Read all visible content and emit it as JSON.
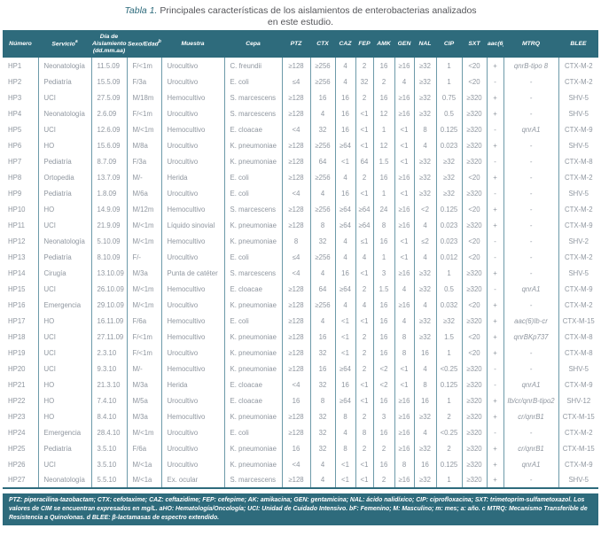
{
  "title": {
    "prefix": "Tabla 1.",
    "line1": "Principales características de los aislamientos de enterobacterias analizados",
    "line2": "en este estudio."
  },
  "colors": {
    "teal": "#2e6b7c",
    "body_text": "#9097a0",
    "header_text": "#ffffff",
    "separator": "#6d9aa9"
  },
  "table": {
    "columns": [
      {
        "key": "numero",
        "label": "Número"
      },
      {
        "key": "servicio",
        "label": "Servicio",
        "sup": "a"
      },
      {
        "key": "dia-aislamiento",
        "label": "Día de Aislamiento (dd.mm.aa)"
      },
      {
        "key": "sexo-edad",
        "label": "Sexo/Edad",
        "sup": "b"
      },
      {
        "key": "muestra",
        "label": "Muestra"
      },
      {
        "key": "cepa",
        "label": "Cepa"
      },
      {
        "key": "ptz",
        "label": "PTZ"
      },
      {
        "key": "ctx",
        "label": "CTX"
      },
      {
        "key": "caz",
        "label": "CAZ"
      },
      {
        "key": "fep",
        "label": "FEP"
      },
      {
        "key": "amk",
        "label": "AMK"
      },
      {
        "key": "gen",
        "label": "GEN"
      },
      {
        "key": "nal",
        "label": "NAL"
      },
      {
        "key": "cip",
        "label": "CIP"
      },
      {
        "key": "sxt",
        "label": "SXT"
      },
      {
        "key": "aac6ib",
        "label": "aac(6)Ib"
      },
      {
        "key": "mtrq",
        "label": "MTRQ"
      },
      {
        "key": "blee",
        "label": "BLEE"
      }
    ],
    "rows": [
      [
        "HP1",
        "Neonatología",
        "11.5.09",
        "F/<1m",
        "Urocultivo",
        "C. freundii",
        "≥128",
        "≥256",
        "4",
        "2",
        "16",
        "≥16",
        "≥32",
        "1",
        "<20",
        "+",
        "qnrB-tipo 8",
        "CTX-M-2"
      ],
      [
        "HP2",
        "Pediatría",
        "15.5.09",
        "F/3a",
        "Urocultivo",
        "E. coli",
        "≤4",
        "≥256",
        "4",
        "32",
        "2",
        "4",
        "≥32",
        "1",
        "<20",
        "-",
        "-",
        "CTX-M-2"
      ],
      [
        "HP3",
        "UCI",
        "27.5.09",
        "M/18m",
        "Hemocultivo",
        "S. marcescens",
        "≥128",
        "16",
        "16",
        "2",
        "16",
        "≥16",
        "≥32",
        "0.75",
        "≥320",
        "+",
        "-",
        "SHV-5"
      ],
      [
        "HP4",
        "Neonatología",
        "2.6.09",
        "F/<1m",
        "Urocultivo",
        "S. marcescens",
        "≥128",
        "4",
        "16",
        "<1",
        "12",
        "≥16",
        "≥32",
        "0.5",
        "≥320",
        "+",
        "-",
        "SHV-5"
      ],
      [
        "HP5",
        "UCI",
        "12.6.09",
        "M/<1m",
        "Hemocultivo",
        "E. cloacae",
        "<4",
        "32",
        "16",
        "<1",
        "1",
        "<1",
        "8",
        "0.125",
        "≥320",
        "-",
        "qnrA1",
        "CTX-M-9"
      ],
      [
        "HP6",
        "HO",
        "15.6.09",
        "M/8a",
        "Urocultivo",
        "K. pneumoniae",
        "≥128",
        "≥256",
        "≥64",
        "<1",
        "12",
        "<1",
        "4",
        "0.023",
        "≥320",
        "+",
        "-",
        "SHV-5"
      ],
      [
        "HP7",
        "Pediatría",
        "8.7.09",
        "F/3a",
        "Urocultivo",
        "K. pneumoniae",
        "≥128",
        "64",
        "<1",
        "64",
        "1.5",
        "<1",
        "≥32",
        "≥32",
        "≥320",
        "-",
        "-",
        "CTX-M-8"
      ],
      [
        "HP8",
        "Ortopedia",
        "13.7.09",
        "M/-",
        "Herida",
        "E. coli",
        "≥128",
        "≥256",
        "4",
        "2",
        "16",
        "≥16",
        "≥32",
        "≥32",
        "<20",
        "+",
        "-",
        "CTX-M-2"
      ],
      [
        "HP9",
        "Pediatría",
        "1.8.09",
        "M/6a",
        "Urocultivo",
        "E. coli",
        "<4",
        "4",
        "16",
        "<1",
        "1",
        "<1",
        "≥32",
        "≥32",
        "≥320",
        "-",
        "-",
        "SHV-5"
      ],
      [
        "HP10",
        "HO",
        "14.9.09",
        "M/12m",
        "Hemocultivo",
        "S. marcescens",
        "≥128",
        "≥256",
        "≥64",
        "≥64",
        "24",
        "≥16",
        "<2",
        "0.125",
        "<20",
        "+",
        "-",
        "CTX-M-2"
      ],
      [
        "HP11",
        "UCI",
        "21.9.09",
        "M/<1m",
        "Líquido sinovial",
        "K. pneumoniae",
        "≥128",
        "8",
        "≥64",
        "≥64",
        "8",
        "≥16",
        "4",
        "0.023",
        "≥320",
        "+",
        "-",
        "CTX-M-9"
      ],
      [
        "HP12",
        "Neonatología",
        "5.10.09",
        "M/<1m",
        "Hemocultivo",
        "K. pneumoniae",
        "8",
        "32",
        "4",
        "≤1",
        "16",
        "<1",
        "≤2",
        "0.023",
        "<20",
        "-",
        "-",
        "SHV-2"
      ],
      [
        "HP13",
        "Pediatría",
        "8.10.09",
        "F/-",
        "Urocultivo",
        "E. coli",
        "≤4",
        "≥256",
        "4",
        "4",
        "1",
        "<1",
        "4",
        "0.012",
        "<20",
        "-",
        "-",
        "CTX-M-2"
      ],
      [
        "HP14",
        "Cirugía",
        "13.10.09",
        "M/3a",
        "Punta de catéter",
        "S. marcescens",
        "<4",
        "4",
        "16",
        "<1",
        "3",
        "≥16",
        "≥32",
        "1",
        "≥320",
        "+",
        "-",
        "SHV-5"
      ],
      [
        "HP15",
        "UCI",
        "26.10.09",
        "M/<1m",
        "Hemocultivo",
        "E. cloacae",
        "≥128",
        "64",
        "≥64",
        "2",
        "1.5",
        "4",
        "≥32",
        "0.5",
        "≥320",
        "-",
        "qnrA1",
        "CTX-M-9"
      ],
      [
        "HP16",
        "Emergencia",
        "29.10.09",
        "M/<1m",
        "Urocultivo",
        "K. pneumoniae",
        "≥128",
        "≥256",
        "4",
        "4",
        "16",
        "≥16",
        "4",
        "0.032",
        "<20",
        "+",
        "-",
        "CTX-M-2"
      ],
      [
        "HP17",
        "HO",
        "16.11.09",
        "F/6a",
        "Hemocultivo",
        "E. coli",
        "≥128",
        "4",
        "<1",
        "<1",
        "16",
        "4",
        "≥32",
        "≥32",
        "≥320",
        "+",
        "aac(6)Ib-cr",
        "CTX-M-15"
      ],
      [
        "HP18",
        "UCI",
        "27.11.09",
        "F/<1m",
        "Hemocultivo",
        "K. pneumoniae",
        "≥128",
        "16",
        "<1",
        "2",
        "16",
        "8",
        "≥32",
        "1.5",
        "<20",
        "+",
        "qnrBKp737",
        "CTX-M-8"
      ],
      [
        "HP19",
        "UCI",
        "2.3.10",
        "F/<1m",
        "Urocultivo",
        "K. pneumoniae",
        "≥128",
        "32",
        "<1",
        "2",
        "16",
        "8",
        "16",
        "1",
        "<20",
        "+",
        "-",
        "CTX-M-8"
      ],
      [
        "HP20",
        "UCI",
        "9.3.10",
        "M/-",
        "Hemocultivo",
        "K. pneumoniae",
        "≥128",
        "16",
        "≥64",
        "2",
        "<2",
        "<1",
        "4",
        "<0.25",
        "≥320",
        "-",
        "-",
        "SHV-5"
      ],
      [
        "HP21",
        "HO",
        "21.3.10",
        "M/3a",
        "Herida",
        "E. cloacae",
        "<4",
        "32",
        "16",
        "<1",
        "<2",
        "<1",
        "8",
        "0.125",
        "≥320",
        "-",
        "qnrA1",
        "CTX-M-9"
      ],
      [
        "HP22",
        "HO",
        "7.4.10",
        "M/5a",
        "Urocultivo",
        "E. cloacae",
        "16",
        "8",
        "≥64",
        "<1",
        "16",
        "≥16",
        "16",
        "1",
        "≥320",
        "+",
        "Ib/cr/qnrB-tipo2",
        "SHV-12"
      ],
      [
        "HP23",
        "HO",
        "8.4.10",
        "M/3a",
        "Hemocultivo",
        "K. pneumoniae",
        "≥128",
        "32",
        "8",
        "2",
        "3",
        "≥16",
        "≥32",
        "2",
        "≥320",
        "+",
        "cr/qnrB1",
        "CTX-M-15"
      ],
      [
        "HP24",
        "Emergencia",
        "28.4.10",
        "M/<1m",
        "Urocultivo",
        "E. coli",
        "≥128",
        "32",
        "4",
        "8",
        "16",
        "≥16",
        "4",
        "<0.25",
        "≥320",
        "-",
        "-",
        "CTX-M-2"
      ],
      [
        "HP25",
        "Pediatría",
        "3.5.10",
        "F/6a",
        "Urocultivo",
        "K. pneumoniae",
        "16",
        "32",
        "8",
        "2",
        "2",
        "≥16",
        "≥32",
        "2",
        "≥320",
        "+",
        "cr/qnrB1",
        "CTX-M-15"
      ],
      [
        "HP26",
        "UCI",
        "3.5.10",
        "M/<1a",
        "Urocultivo",
        "K. pneumoniae",
        "<4",
        "4",
        "<1",
        "<1",
        "16",
        "8",
        "16",
        "0.125",
        "≥320",
        "+",
        "qnrA1",
        "CTX-M-9"
      ],
      [
        "HP27",
        "Neonatología",
        "5.5.10",
        "M/<1a",
        "Ex. ocular",
        "S. marcescens",
        "≥128",
        "4",
        "<1",
        "<1",
        "2",
        "≥16",
        "≥32",
        "1",
        "≥320",
        "+",
        "-",
        "SHV-5"
      ]
    ]
  },
  "footnote": {
    "text": "PTZ: piperacilina-tazobactam; CTX: cefotaxime; CAZ: ceftazidime; FEP: cefepime; AK: amikacina; GEN: gentamicina; NAL: ácido nalidíxico; CIP: ciprofloxacina; SXT: trimetoprim-sulfametoxazol. Los valores de CIM se encuentran expresados en mg/L. aHO: Hematología/Oncología; UCI: Unidad de Cuidado Intensivo. bF: Femenino; M: Masculino; m: mes; a: año. c MTRQ: Mecanismo Transferible de Resistencia a Quinolonas. d BLEE: β-lactamasas de espectro extendido."
  }
}
